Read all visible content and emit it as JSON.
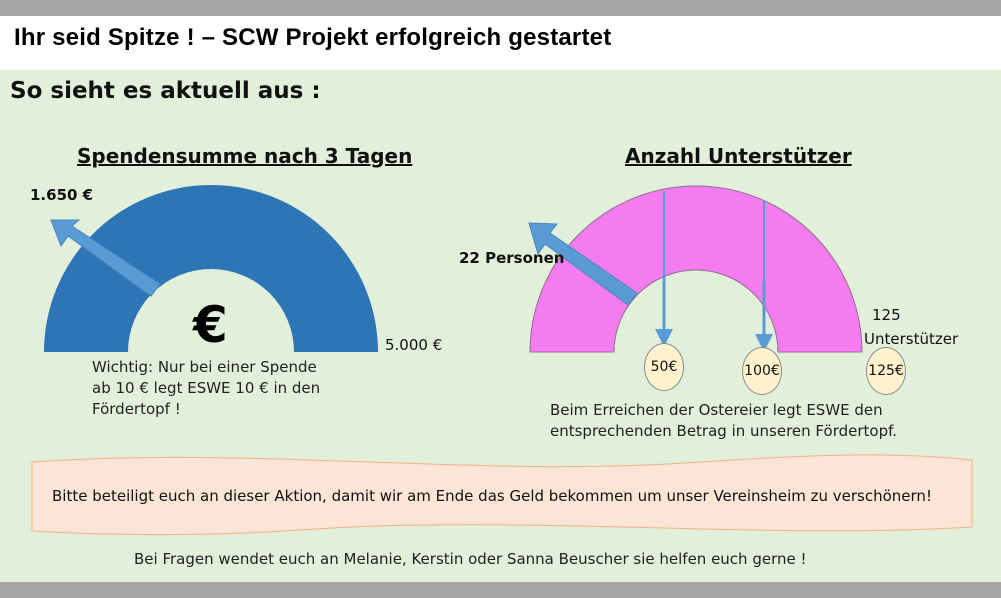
{
  "header": {
    "title": "Ihr seid Spitze !  – SCW Projekt  erfolgreich gestartet",
    "subtitle": "So sieht es aktuell aus :"
  },
  "donation_gauge": {
    "heading": "Spendensumme nach 3 Tagen",
    "current_label": "1.650 €",
    "max_label": "5.000 €",
    "current_value": 1650,
    "max_value": 5000,
    "currency_symbol": "€",
    "color": "#2e75b6",
    "note": [
      "Wichtig: Nur bei einer Spende",
      "ab 10 €  legt ESWE 10 € in den",
      "Fördertopf !"
    ]
  },
  "supporters_gauge": {
    "heading": "Anzahl Unterstützer",
    "current_label": "22 Personen",
    "max_label": [
      "125",
      "Unterstützer"
    ],
    "current_value": 22,
    "max_value": 125,
    "color": "#f47cf0",
    "milestones": [
      {
        "label": "50€"
      },
      {
        "label": "100€"
      },
      {
        "label": "125€"
      }
    ],
    "note": [
      "Beim Erreichen der Ostereier legt ESWE den",
      "entsprechenden Betrag in unseren Fördertopf."
    ]
  },
  "banner": {
    "text": "Bitte beteiligt euch an dieser Aktion,  damit wir am Ende das Geld bekommen um unser Vereinsheim zu verschönern!",
    "fill": "#fbe5d6"
  },
  "footer": {
    "text": "Bei Fragen wendet euch an Melanie, Kerstin oder Sanna Beuscher  sie  helfen euch gerne !"
  },
  "colors": {
    "background": "#e2efda",
    "arrow": "#5b9bd5",
    "frame_bar": "#a5a5a5"
  }
}
